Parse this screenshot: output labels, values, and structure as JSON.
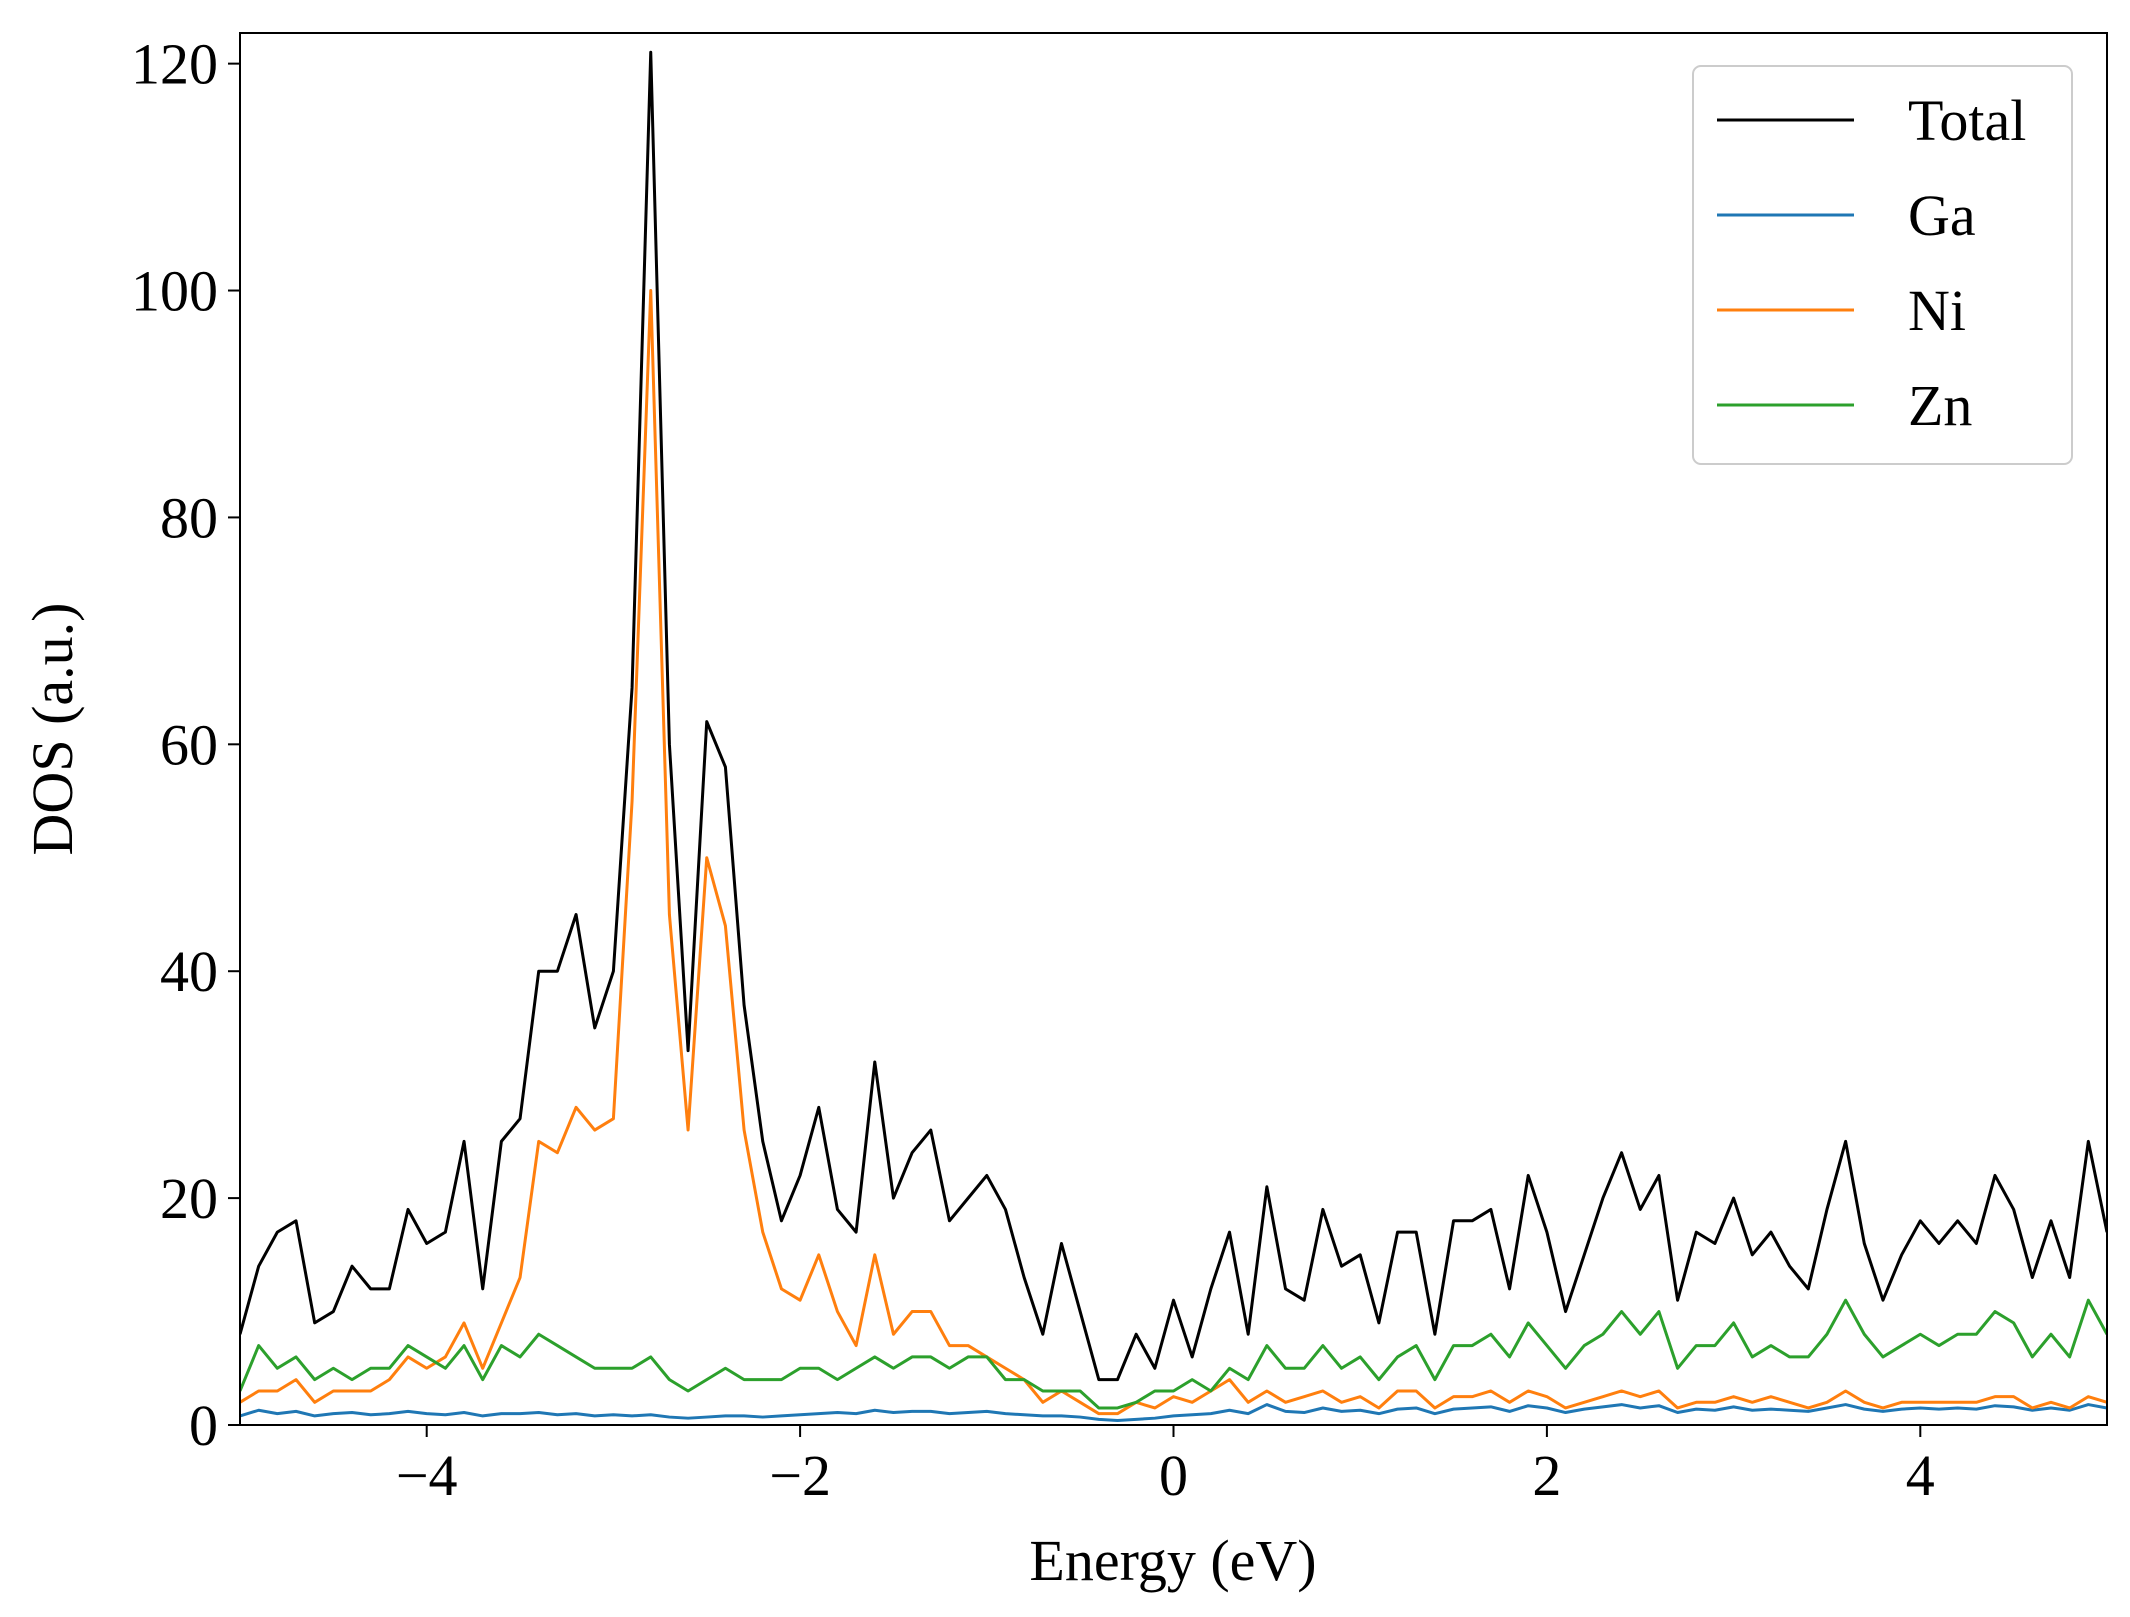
{
  "chart_data": {
    "type": "line",
    "xlabel": "Energy (eV)",
    "ylabel": "DOS (a.u.)",
    "xlim": [
      -5,
      5
    ],
    "ylim": [
      0,
      122.7
    ],
    "xticks": [
      {
        "value": -4,
        "label": "−4"
      },
      {
        "value": -2,
        "label": "−2"
      },
      0,
      2,
      4
    ],
    "yticks": [
      0,
      20,
      40,
      60,
      80,
      100,
      120
    ],
    "legend": "upper right",
    "x": [
      -5.0,
      -4.9,
      -4.8,
      -4.7,
      -4.6,
      -4.5,
      -4.4,
      -4.3,
      -4.2,
      -4.1,
      -4.0,
      -3.9,
      -3.8,
      -3.7,
      -3.6,
      -3.5,
      -3.4,
      -3.3,
      -3.2,
      -3.1,
      -3.0,
      -2.9,
      -2.8,
      -2.7,
      -2.6,
      -2.5,
      -2.4,
      -2.3,
      -2.2,
      -2.1,
      -2.0,
      -1.9,
      -1.8,
      -1.7,
      -1.6,
      -1.5,
      -1.4,
      -1.3,
      -1.2,
      -1.1,
      -1.0,
      -0.9,
      -0.8,
      -0.7,
      -0.6,
      -0.5,
      -0.4,
      -0.3,
      -0.2,
      -0.1,
      0.0,
      0.1,
      0.2,
      0.3,
      0.4,
      0.5,
      0.6,
      0.7,
      0.8,
      0.9,
      1.0,
      1.1,
      1.2,
      1.3,
      1.4,
      1.5,
      1.6,
      1.7,
      1.8,
      1.9,
      2.0,
      2.1,
      2.2,
      2.3,
      2.4,
      2.5,
      2.6,
      2.7,
      2.8,
      2.9,
      3.0,
      3.1,
      3.2,
      3.3,
      3.4,
      3.5,
      3.6,
      3.7,
      3.8,
      3.9,
      4.0,
      4.1,
      4.2,
      4.3,
      4.4,
      4.5,
      4.6,
      4.7,
      4.8,
      4.9,
      5.0
    ],
    "series": [
      {
        "name": "Total",
        "color": "#000000",
        "values": [
          8,
          14,
          17,
          18,
          9,
          10,
          14,
          12,
          12,
          19,
          16,
          17,
          25,
          12,
          25,
          27,
          40,
          40,
          45,
          35,
          40,
          65,
          121,
          60,
          33,
          62,
          58,
          37,
          25,
          18,
          22,
          28,
          19,
          17,
          32,
          20,
          24,
          26,
          18,
          20,
          22,
          19,
          13,
          8,
          16,
          10,
          4,
          4,
          8,
          5,
          11,
          6,
          12,
          17,
          8,
          21,
          12,
          11,
          19,
          14,
          15,
          9,
          17,
          17,
          8,
          18,
          18,
          19,
          12,
          22,
          17,
          10,
          15,
          20,
          24,
          19,
          22,
          11,
          17,
          16,
          20,
          15,
          17,
          14,
          12,
          19,
          25,
          16,
          11,
          15,
          18,
          16,
          18,
          16,
          22,
          19,
          13,
          18,
          13,
          25,
          17
        ]
      },
      {
        "name": "Ga",
        "color": "#1f77b4",
        "values": [
          0.8,
          1.3,
          1.0,
          1.2,
          0.8,
          1.0,
          1.1,
          0.9,
          1.0,
          1.2,
          1.0,
          0.9,
          1.1,
          0.8,
          1.0,
          1.0,
          1.1,
          0.9,
          1.0,
          0.8,
          0.9,
          0.8,
          0.9,
          0.7,
          0.6,
          0.7,
          0.8,
          0.8,
          0.7,
          0.8,
          0.9,
          1.0,
          1.1,
          1.0,
          1.3,
          1.1,
          1.2,
          1.2,
          1.0,
          1.1,
          1.2,
          1.0,
          0.9,
          0.8,
          0.8,
          0.7,
          0.5,
          0.4,
          0.5,
          0.6,
          0.8,
          0.9,
          1.0,
          1.3,
          1.0,
          1.8,
          1.2,
          1.1,
          1.5,
          1.2,
          1.3,
          1.0,
          1.4,
          1.5,
          1.0,
          1.4,
          1.5,
          1.6,
          1.2,
          1.7,
          1.5,
          1.1,
          1.4,
          1.6,
          1.8,
          1.5,
          1.7,
          1.1,
          1.4,
          1.3,
          1.6,
          1.3,
          1.4,
          1.3,
          1.2,
          1.5,
          1.8,
          1.4,
          1.2,
          1.4,
          1.5,
          1.4,
          1.5,
          1.4,
          1.7,
          1.6,
          1.3,
          1.5,
          1.3,
          1.8,
          1.5
        ]
      },
      {
        "name": "Ni",
        "color": "#ff7f0e",
        "values": [
          2,
          3,
          3,
          4,
          2,
          3,
          3,
          3,
          4,
          6,
          5,
          6,
          9,
          5,
          9,
          13,
          25,
          24,
          28,
          26,
          27,
          55,
          100,
          45,
          26,
          50,
          44,
          26,
          17,
          12,
          11,
          15,
          10,
          7,
          15,
          8,
          10,
          10,
          7,
          7,
          6,
          5,
          4,
          2,
          3,
          2,
          1,
          1,
          2,
          1.5,
          2.5,
          2,
          3,
          4,
          2,
          3,
          2,
          2.5,
          3,
          2,
          2.5,
          1.5,
          3,
          3,
          1.5,
          2.5,
          2.5,
          3,
          2,
          3,
          2.5,
          1.5,
          2,
          2.5,
          3,
          2.5,
          3,
          1.5,
          2,
          2,
          2.5,
          2,
          2.5,
          2,
          1.5,
          2,
          3,
          2,
          1.5,
          2,
          2,
          2,
          2,
          2,
          2.5,
          2.5,
          1.5,
          2,
          1.5,
          2.5,
          2
        ]
      },
      {
        "name": "Zn",
        "color": "#2ca02c",
        "values": [
          3,
          7,
          5,
          6,
          4,
          5,
          4,
          5,
          5,
          7,
          6,
          5,
          7,
          4,
          7,
          6,
          8,
          7,
          6,
          5,
          5,
          5,
          6,
          4,
          3,
          4,
          5,
          4,
          4,
          4,
          5,
          5,
          4,
          5,
          6,
          5,
          6,
          6,
          5,
          6,
          6,
          4,
          4,
          3,
          3,
          3,
          1.5,
          1.5,
          2,
          3,
          3,
          4,
          3,
          5,
          4,
          7,
          5,
          5,
          7,
          5,
          6,
          4,
          6,
          7,
          4,
          7,
          7,
          8,
          6,
          9,
          7,
          5,
          7,
          8,
          10,
          8,
          10,
          5,
          7,
          7,
          9,
          6,
          7,
          6,
          6,
          8,
          11,
          8,
          6,
          7,
          8,
          7,
          8,
          8,
          10,
          9,
          6,
          8,
          6,
          11,
          8
        ]
      }
    ]
  }
}
